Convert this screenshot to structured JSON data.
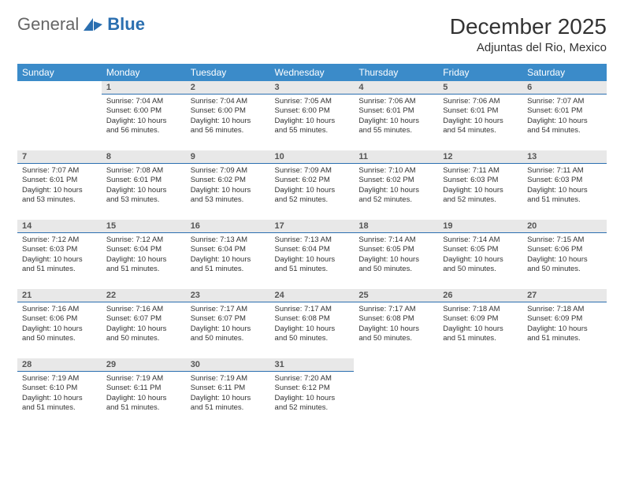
{
  "brand": {
    "part1": "General",
    "part2": "Blue"
  },
  "header": {
    "title": "December 2025",
    "location": "Adjuntas del Rio, Mexico"
  },
  "colors": {
    "header_bg": "#3b8bc9",
    "header_text": "#ffffff",
    "daynum_bg": "#e8e8e8",
    "daynum_border": "#2b6fb0",
    "logo_blue": "#2b6fb0"
  },
  "weekdays": [
    "Sunday",
    "Monday",
    "Tuesday",
    "Wednesday",
    "Thursday",
    "Friday",
    "Saturday"
  ],
  "weeks": [
    [
      null,
      {
        "n": "1",
        "sr": "Sunrise: 7:04 AM",
        "ss": "Sunset: 6:00 PM",
        "dl": "Daylight: 10 hours and 56 minutes."
      },
      {
        "n": "2",
        "sr": "Sunrise: 7:04 AM",
        "ss": "Sunset: 6:00 PM",
        "dl": "Daylight: 10 hours and 56 minutes."
      },
      {
        "n": "3",
        "sr": "Sunrise: 7:05 AM",
        "ss": "Sunset: 6:00 PM",
        "dl": "Daylight: 10 hours and 55 minutes."
      },
      {
        "n": "4",
        "sr": "Sunrise: 7:06 AM",
        "ss": "Sunset: 6:01 PM",
        "dl": "Daylight: 10 hours and 55 minutes."
      },
      {
        "n": "5",
        "sr": "Sunrise: 7:06 AM",
        "ss": "Sunset: 6:01 PM",
        "dl": "Daylight: 10 hours and 54 minutes."
      },
      {
        "n": "6",
        "sr": "Sunrise: 7:07 AM",
        "ss": "Sunset: 6:01 PM",
        "dl": "Daylight: 10 hours and 54 minutes."
      }
    ],
    [
      {
        "n": "7",
        "sr": "Sunrise: 7:07 AM",
        "ss": "Sunset: 6:01 PM",
        "dl": "Daylight: 10 hours and 53 minutes."
      },
      {
        "n": "8",
        "sr": "Sunrise: 7:08 AM",
        "ss": "Sunset: 6:01 PM",
        "dl": "Daylight: 10 hours and 53 minutes."
      },
      {
        "n": "9",
        "sr": "Sunrise: 7:09 AM",
        "ss": "Sunset: 6:02 PM",
        "dl": "Daylight: 10 hours and 53 minutes."
      },
      {
        "n": "10",
        "sr": "Sunrise: 7:09 AM",
        "ss": "Sunset: 6:02 PM",
        "dl": "Daylight: 10 hours and 52 minutes."
      },
      {
        "n": "11",
        "sr": "Sunrise: 7:10 AM",
        "ss": "Sunset: 6:02 PM",
        "dl": "Daylight: 10 hours and 52 minutes."
      },
      {
        "n": "12",
        "sr": "Sunrise: 7:11 AM",
        "ss": "Sunset: 6:03 PM",
        "dl": "Daylight: 10 hours and 52 minutes."
      },
      {
        "n": "13",
        "sr": "Sunrise: 7:11 AM",
        "ss": "Sunset: 6:03 PM",
        "dl": "Daylight: 10 hours and 51 minutes."
      }
    ],
    [
      {
        "n": "14",
        "sr": "Sunrise: 7:12 AM",
        "ss": "Sunset: 6:03 PM",
        "dl": "Daylight: 10 hours and 51 minutes."
      },
      {
        "n": "15",
        "sr": "Sunrise: 7:12 AM",
        "ss": "Sunset: 6:04 PM",
        "dl": "Daylight: 10 hours and 51 minutes."
      },
      {
        "n": "16",
        "sr": "Sunrise: 7:13 AM",
        "ss": "Sunset: 6:04 PM",
        "dl": "Daylight: 10 hours and 51 minutes."
      },
      {
        "n": "17",
        "sr": "Sunrise: 7:13 AM",
        "ss": "Sunset: 6:04 PM",
        "dl": "Daylight: 10 hours and 51 minutes."
      },
      {
        "n": "18",
        "sr": "Sunrise: 7:14 AM",
        "ss": "Sunset: 6:05 PM",
        "dl": "Daylight: 10 hours and 50 minutes."
      },
      {
        "n": "19",
        "sr": "Sunrise: 7:14 AM",
        "ss": "Sunset: 6:05 PM",
        "dl": "Daylight: 10 hours and 50 minutes."
      },
      {
        "n": "20",
        "sr": "Sunrise: 7:15 AM",
        "ss": "Sunset: 6:06 PM",
        "dl": "Daylight: 10 hours and 50 minutes."
      }
    ],
    [
      {
        "n": "21",
        "sr": "Sunrise: 7:16 AM",
        "ss": "Sunset: 6:06 PM",
        "dl": "Daylight: 10 hours and 50 minutes."
      },
      {
        "n": "22",
        "sr": "Sunrise: 7:16 AM",
        "ss": "Sunset: 6:07 PM",
        "dl": "Daylight: 10 hours and 50 minutes."
      },
      {
        "n": "23",
        "sr": "Sunrise: 7:17 AM",
        "ss": "Sunset: 6:07 PM",
        "dl": "Daylight: 10 hours and 50 minutes."
      },
      {
        "n": "24",
        "sr": "Sunrise: 7:17 AM",
        "ss": "Sunset: 6:08 PM",
        "dl": "Daylight: 10 hours and 50 minutes."
      },
      {
        "n": "25",
        "sr": "Sunrise: 7:17 AM",
        "ss": "Sunset: 6:08 PM",
        "dl": "Daylight: 10 hours and 50 minutes."
      },
      {
        "n": "26",
        "sr": "Sunrise: 7:18 AM",
        "ss": "Sunset: 6:09 PM",
        "dl": "Daylight: 10 hours and 51 minutes."
      },
      {
        "n": "27",
        "sr": "Sunrise: 7:18 AM",
        "ss": "Sunset: 6:09 PM",
        "dl": "Daylight: 10 hours and 51 minutes."
      }
    ],
    [
      {
        "n": "28",
        "sr": "Sunrise: 7:19 AM",
        "ss": "Sunset: 6:10 PM",
        "dl": "Daylight: 10 hours and 51 minutes."
      },
      {
        "n": "29",
        "sr": "Sunrise: 7:19 AM",
        "ss": "Sunset: 6:11 PM",
        "dl": "Daylight: 10 hours and 51 minutes."
      },
      {
        "n": "30",
        "sr": "Sunrise: 7:19 AM",
        "ss": "Sunset: 6:11 PM",
        "dl": "Daylight: 10 hours and 51 minutes."
      },
      {
        "n": "31",
        "sr": "Sunrise: 7:20 AM",
        "ss": "Sunset: 6:12 PM",
        "dl": "Daylight: 10 hours and 52 minutes."
      },
      null,
      null,
      null
    ]
  ]
}
